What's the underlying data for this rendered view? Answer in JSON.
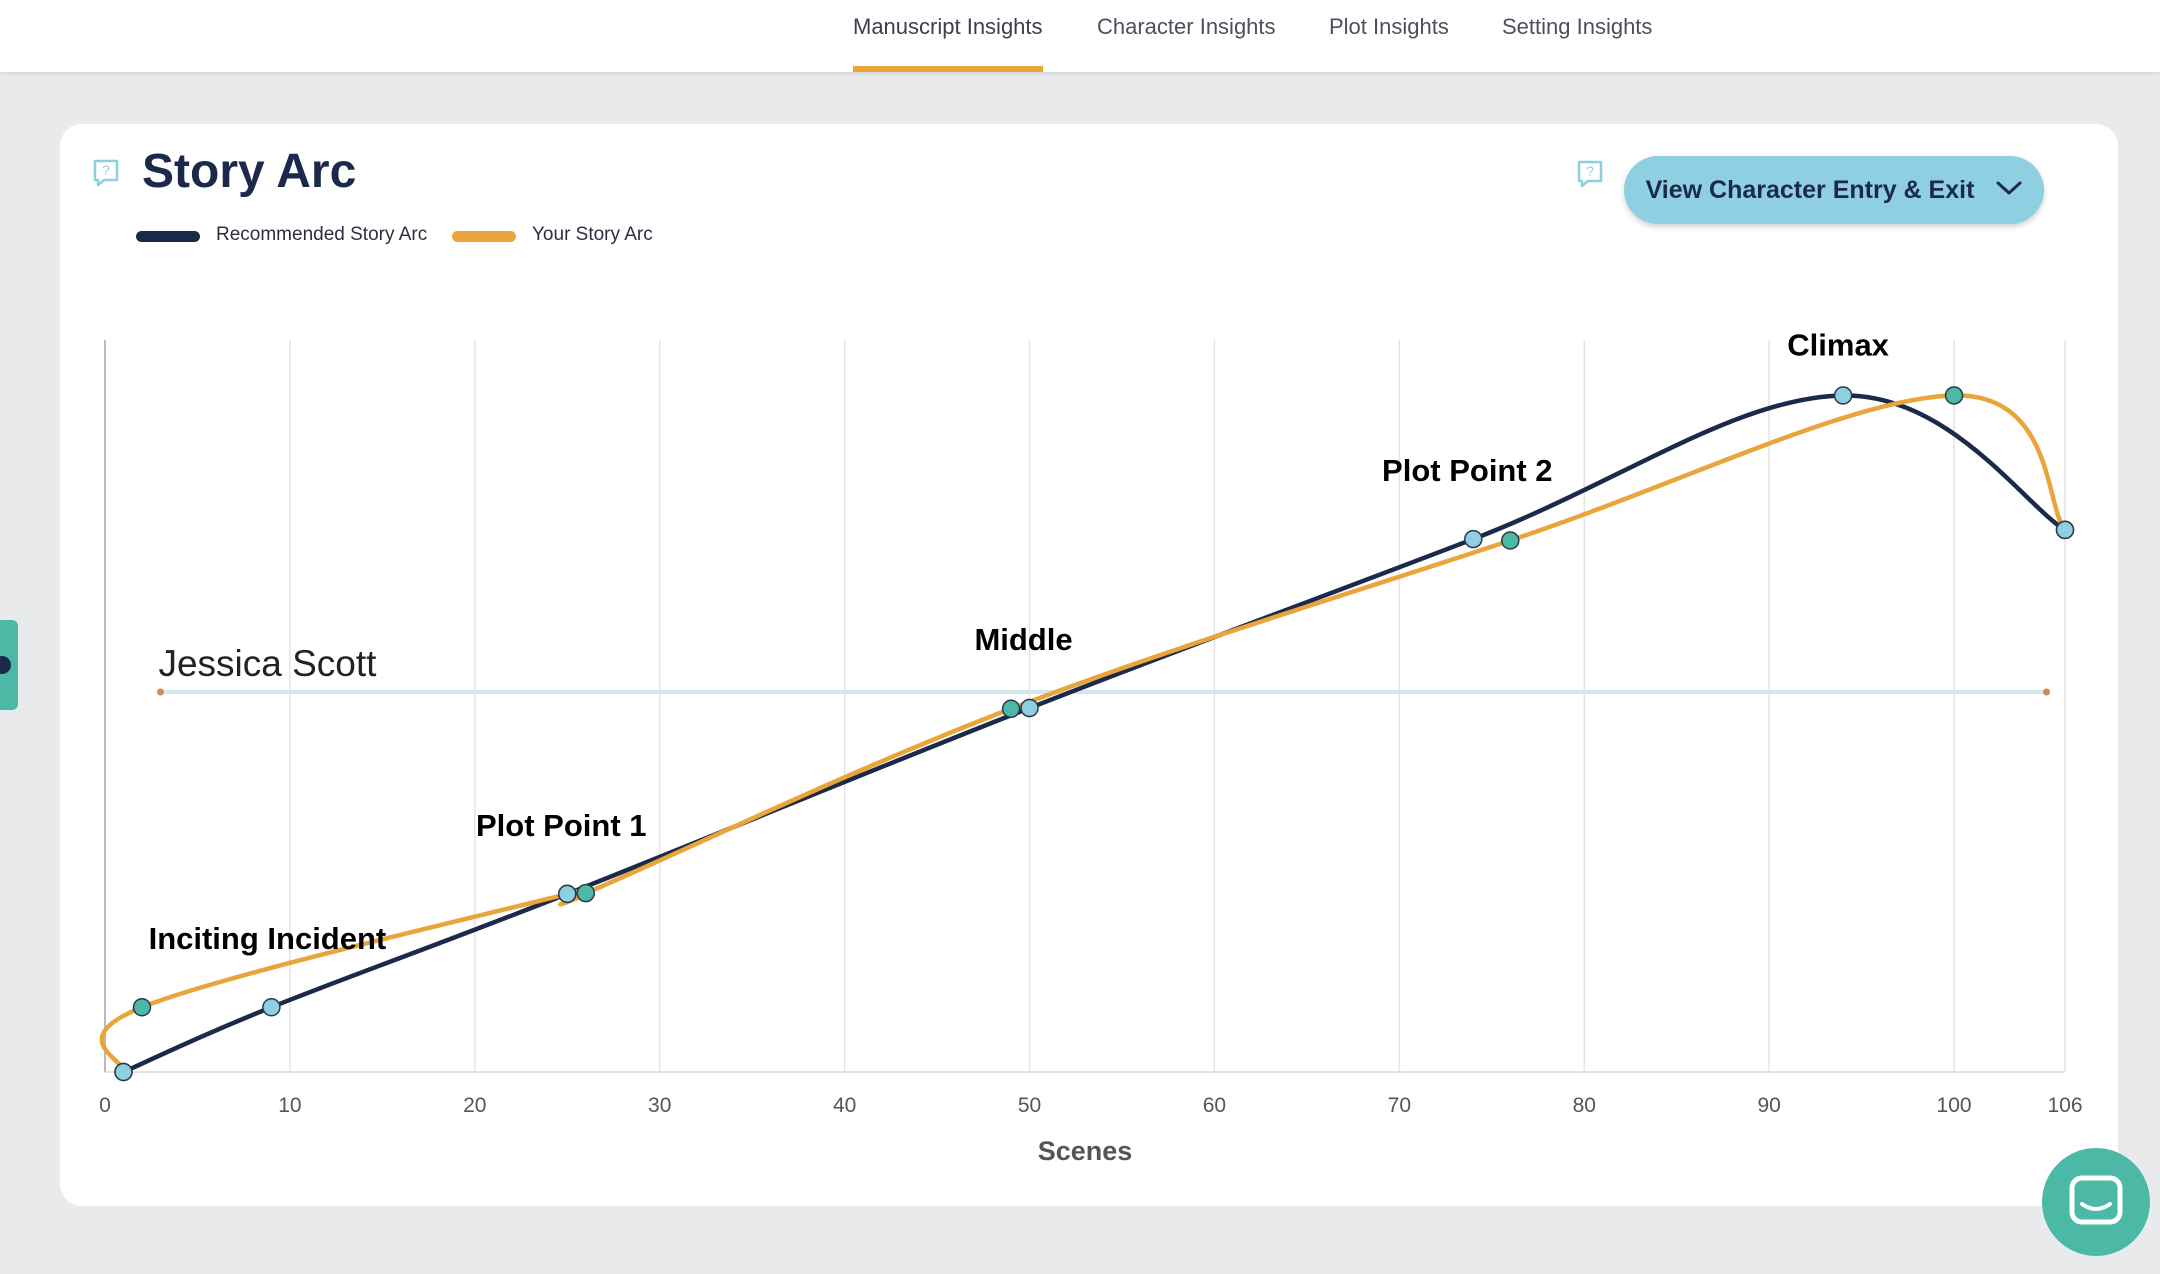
{
  "nav": {
    "tabs": [
      {
        "label": "Manuscript Insights",
        "active": true
      },
      {
        "label": "Character Insights",
        "active": false
      },
      {
        "label": "Plot Insights",
        "active": false
      },
      {
        "label": "Setting Insights",
        "active": false
      }
    ]
  },
  "card": {
    "title": "Story Arc",
    "help_icon": "question-bubble-icon",
    "entry_button": {
      "label": "View Character Entry & Exit",
      "icon": "chevron-down-icon"
    }
  },
  "colors": {
    "recommended": "#1b2a4a",
    "yours": "#e9a43a",
    "point_recommended": "#8ecfe2",
    "point_yours": "#4bb9a6",
    "character_bar": "#cfe9ee",
    "accent": "#e9a43a"
  },
  "chart_data": {
    "type": "line",
    "xlabel": "Scenes",
    "x_ticks": [
      0,
      10,
      20,
      30,
      40,
      50,
      60,
      70,
      80,
      90,
      100,
      106
    ],
    "xlim": [
      0,
      106
    ],
    "ylim": [
      0,
      100
    ],
    "grid": true,
    "legend": "top-left",
    "series": [
      {
        "name": "Recommended Story Arc",
        "points": [
          [
            1,
            0
          ],
          [
            9,
            9.2
          ],
          [
            25,
            25.3
          ],
          [
            50,
            51.7
          ],
          [
            74,
            75.7
          ],
          [
            94,
            96.1
          ],
          [
            106,
            77.0
          ]
        ]
      },
      {
        "name": "Your Story Arc",
        "points": [
          [
            1,
            0
          ],
          [
            2,
            9.2
          ],
          [
            25,
            25.3
          ],
          [
            26,
            25.4
          ],
          [
            49,
            51.6
          ],
          [
            76,
            75.5
          ],
          [
            100,
            96.1
          ],
          [
            106,
            77.0
          ]
        ]
      }
    ],
    "annotations": [
      {
        "label": "Inciting Incident",
        "x": 9
      },
      {
        "label": "Plot Point 1",
        "x": 25
      },
      {
        "label": "Middle",
        "x": 50
      },
      {
        "label": "Plot Point 2",
        "x": 74
      },
      {
        "label": "Climax",
        "x": 94
      }
    ],
    "characters": [
      {
        "name": "Jessica Scott",
        "entry": 3,
        "exit": 105
      }
    ]
  },
  "icons": {
    "side_tab": "help-tab-icon",
    "chat": "chat-bubble-icon"
  }
}
